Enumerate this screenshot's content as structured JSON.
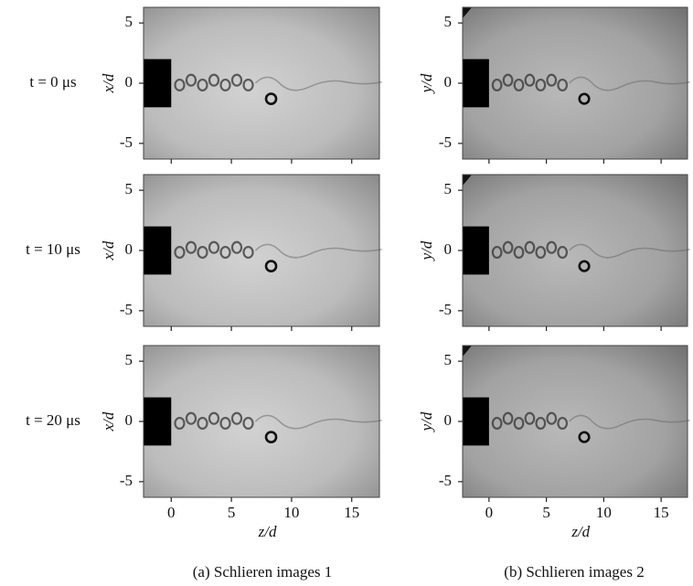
{
  "figure": {
    "xlim": [
      -2.3,
      17.3
    ],
    "ylim": [
      -6.3,
      6.3
    ],
    "xticks": [
      0,
      5,
      10,
      15
    ],
    "yticks": [
      5,
      0,
      -5
    ],
    "xlabel": "z/d",
    "columns": [
      {
        "ylabel": "x/d",
        "caption": "(a) Schlieren images 1"
      },
      {
        "ylabel": "y/d",
        "caption": "(b) Schlieren images 2"
      }
    ],
    "rows": [
      {
        "label": "t = 0 μs"
      },
      {
        "label": "t = 10 μs"
      },
      {
        "label": "t = 20 μs"
      }
    ]
  }
}
